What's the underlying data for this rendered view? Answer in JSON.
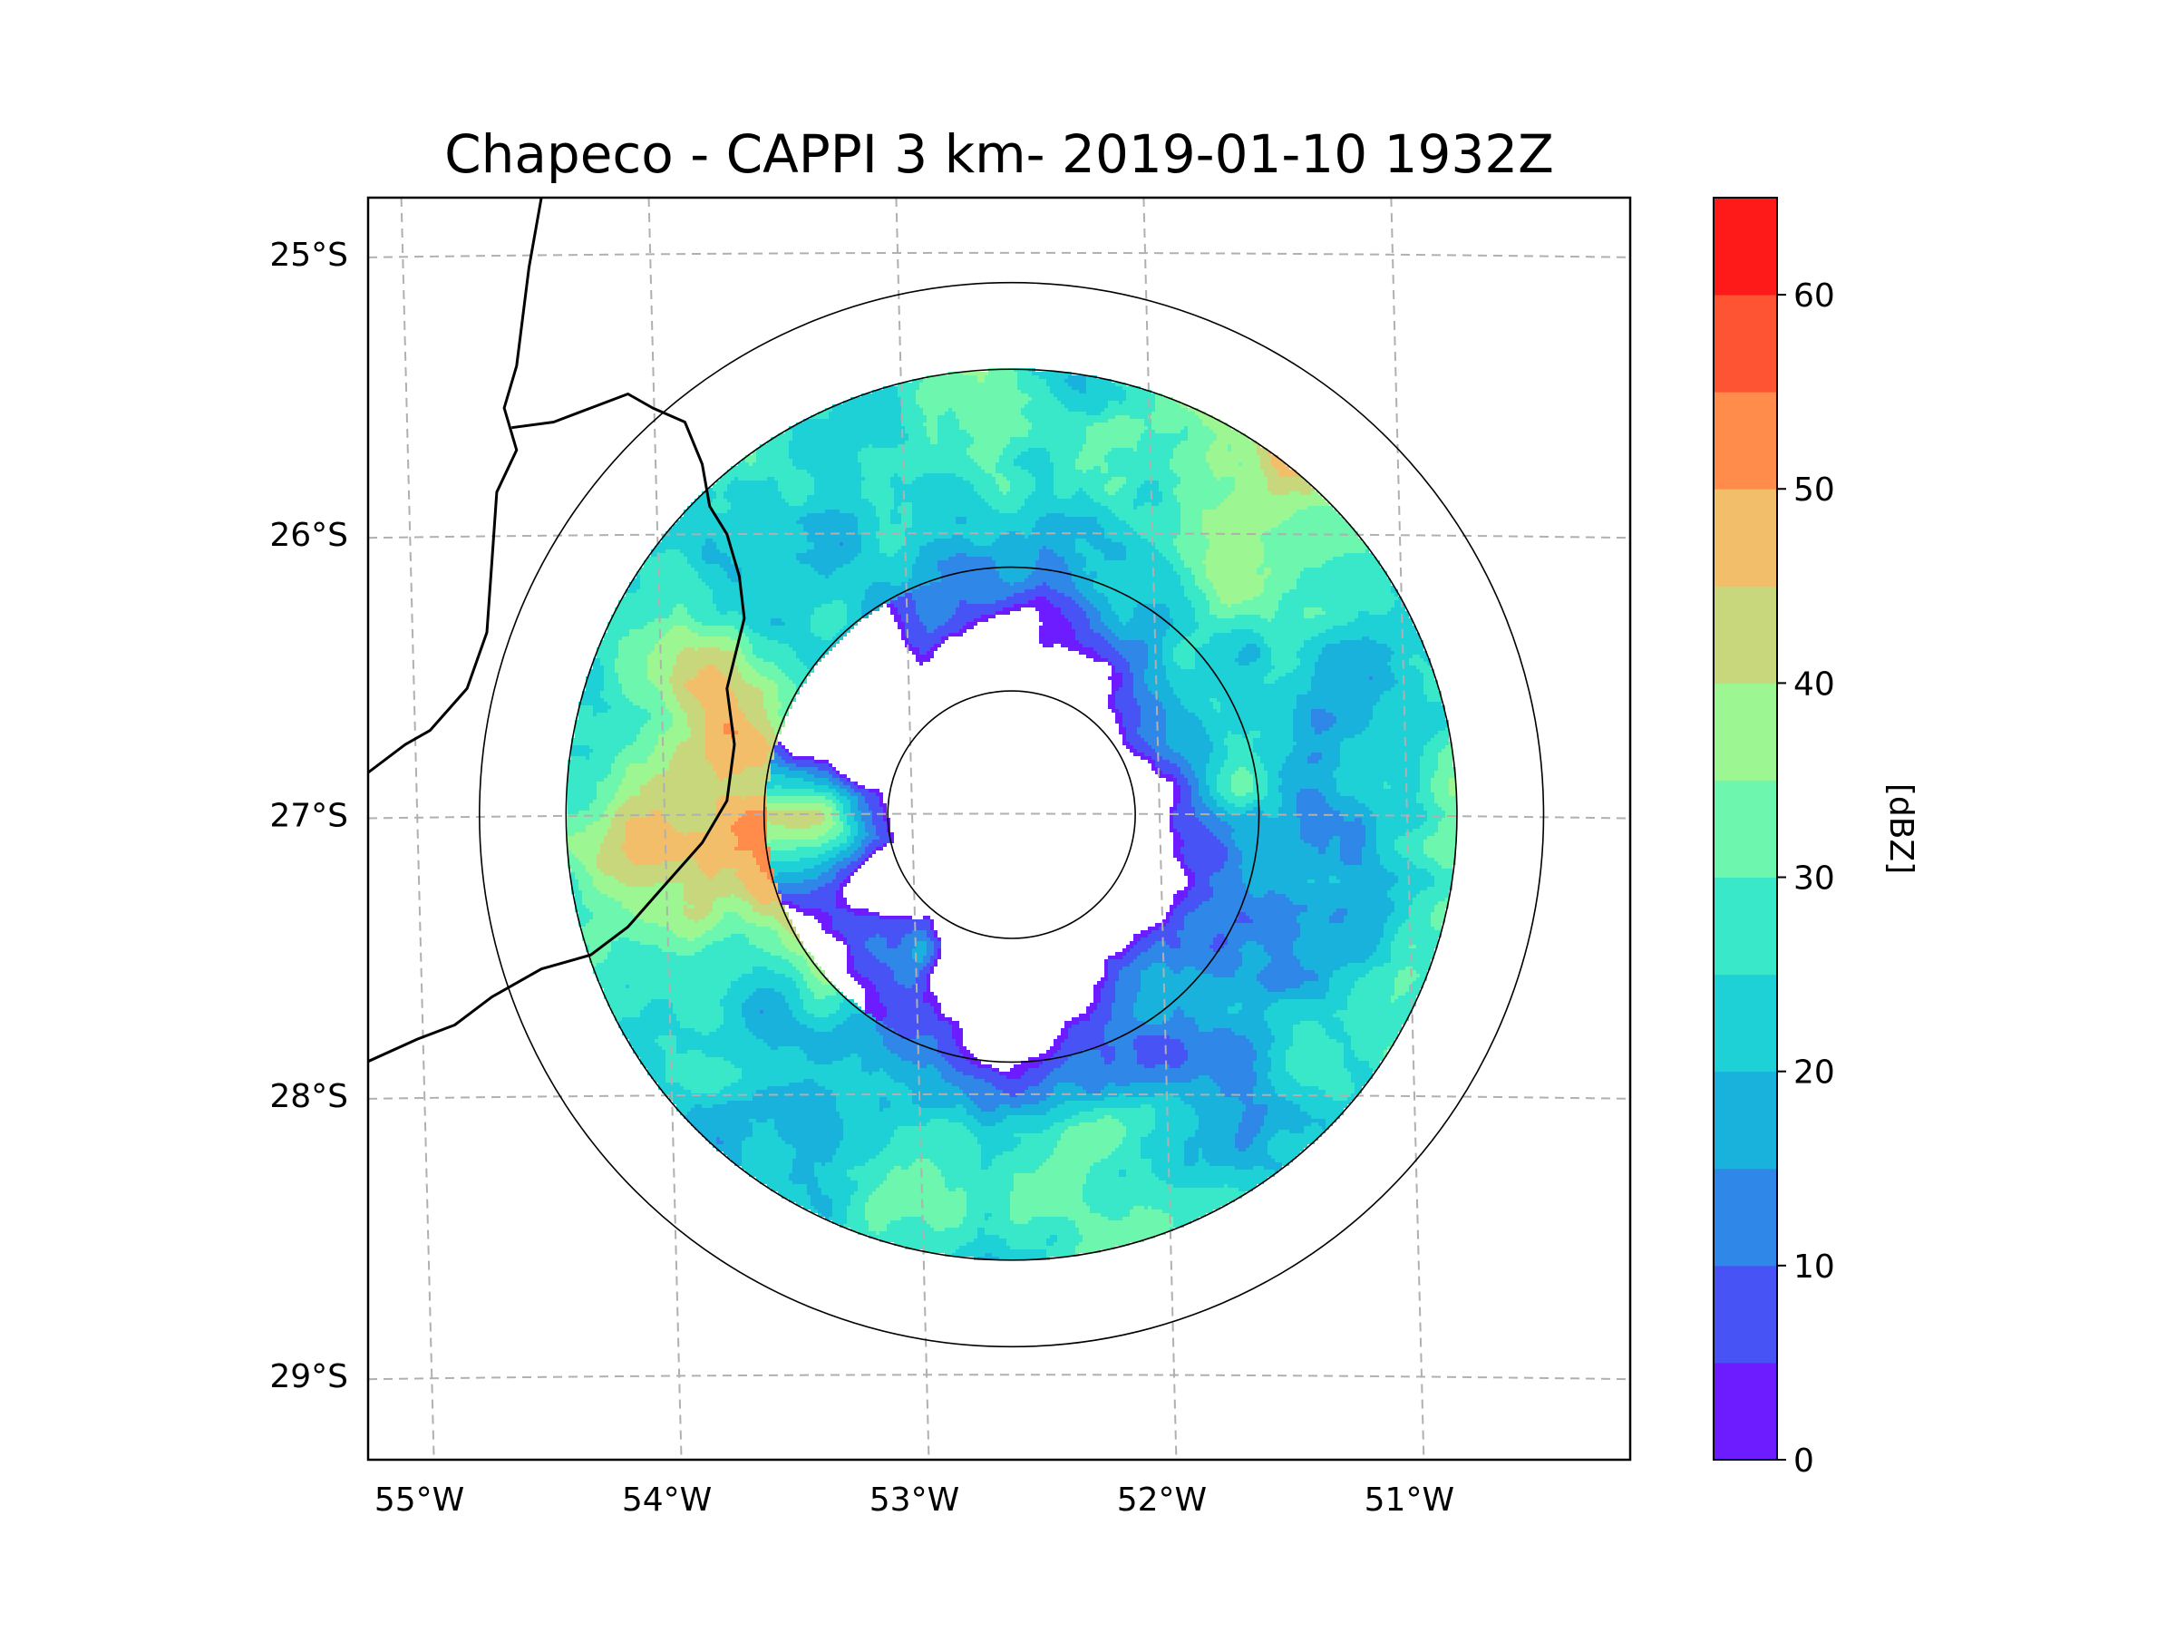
{
  "title": "Chapeco - CAPPI 3 km- 2019-01-10 1932Z",
  "map": {
    "lon_range": [
      -55.2,
      -50.1
    ],
    "lat_range": [
      -29.3,
      -24.8
    ],
    "lat_ticks": [
      {
        "value": -25,
        "label": "25°S"
      },
      {
        "value": -26,
        "label": "26°S"
      },
      {
        "value": -27,
        "label": "27°S"
      },
      {
        "value": -28,
        "label": "28°S"
      },
      {
        "value": -29,
        "label": "29°S"
      }
    ],
    "lon_ticks": [
      {
        "value": -55,
        "label": "55°W"
      },
      {
        "value": -54,
        "label": "54°W"
      },
      {
        "value": -53,
        "label": "53°W"
      },
      {
        "value": -52,
        "label": "52°W"
      },
      {
        "value": -51,
        "label": "51°W"
      }
    ],
    "gridlines": true,
    "radar_site": {
      "lon": -52.6,
      "lat": -27.0
    },
    "range_rings_deg": [
      0.5,
      1.0,
      1.8,
      2.15
    ],
    "data_radius_deg": 1.8,
    "boundary_colors": {
      "rings": "#000000",
      "borders": "#000000",
      "grid": "#b0b0b0"
    }
  },
  "colorbar": {
    "label": "[dBZ]",
    "min": 0,
    "max": 65,
    "step": 5,
    "ticks": [
      {
        "value": 0,
        "label": "0"
      },
      {
        "value": 10,
        "label": "10"
      },
      {
        "value": 20,
        "label": "20"
      },
      {
        "value": 30,
        "label": "30"
      },
      {
        "value": 40,
        "label": "40"
      },
      {
        "value": 50,
        "label": "50"
      },
      {
        "value": 60,
        "label": "60"
      }
    ],
    "colors": [
      "#6c1cff",
      "#4753f4",
      "#2f88e8",
      "#18b2dd",
      "#1ed1d6",
      "#38e8c8",
      "#6cf6ae",
      "#9cf691",
      "#c8d67c",
      "#f2be6a",
      "#ff8c4a",
      "#ff5433",
      "#ff1a1a"
    ]
  }
}
